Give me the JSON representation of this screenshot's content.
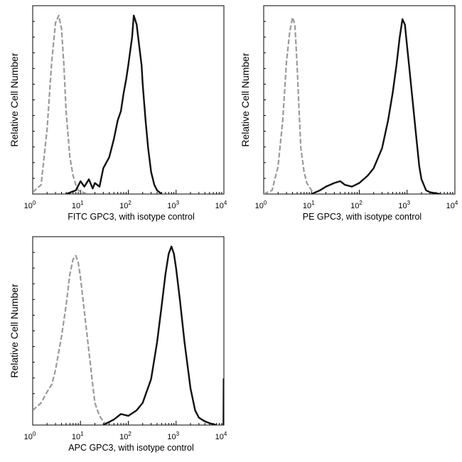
{
  "chart_data": [
    {
      "type": "line",
      "xlabel": "FITC GPC3, with isotype control",
      "ylabel": "Relative Cell Number",
      "x_scale": "log",
      "xlim": [
        1,
        10000
      ],
      "x_ticks": [
        {
          "base": "10",
          "exp": "0"
        },
        {
          "base": "10",
          "exp": "1"
        },
        {
          "base": "10",
          "exp": "2"
        },
        {
          "base": "10",
          "exp": "3"
        },
        {
          "base": "10",
          "exp": "4"
        }
      ],
      "y_ticks_labeled": false,
      "series": [
        {
          "role": "isotype",
          "color": "#9a9a9a",
          "style": "dashed",
          "x": [
            1.0,
            1.5,
            2.0,
            2.5,
            3.0,
            3.5,
            4.0,
            4.5,
            5.0,
            6.0,
            7.0,
            8.0,
            9.0,
            11.0,
            14.0
          ],
          "y": [
            1,
            5,
            35,
            72,
            93,
            97,
            90,
            70,
            45,
            20,
            10,
            5,
            2,
            1,
            0
          ]
        },
        {
          "role": "GPC3",
          "color": "#111111",
          "style": "solid",
          "x": [
            5,
            8,
            10,
            12,
            15,
            18,
            20,
            25,
            30,
            40,
            50,
            60,
            70,
            80,
            90,
            100,
            110,
            120,
            130,
            150,
            170,
            190,
            200,
            230,
            260,
            300,
            350,
            400,
            500
          ],
          "y": [
            0,
            2,
            7,
            4,
            8,
            3,
            6,
            4,
            14,
            20,
            30,
            40,
            45,
            55,
            62,
            70,
            78,
            85,
            97,
            92,
            80,
            70,
            60,
            40,
            25,
            12,
            5,
            2,
            0
          ]
        }
      ]
    },
    {
      "type": "line",
      "xlabel": "PE GPC3, with isotype control",
      "ylabel": "Relative Cell Number",
      "x_scale": "log",
      "xlim": [
        1,
        10000
      ],
      "x_ticks": [
        {
          "base": "10",
          "exp": "0"
        },
        {
          "base": "10",
          "exp": "1"
        },
        {
          "base": "10",
          "exp": "2"
        },
        {
          "base": "10",
          "exp": "3"
        },
        {
          "base": "10",
          "exp": "4"
        }
      ],
      "y_ticks_labeled": false,
      "series": [
        {
          "role": "isotype",
          "color": "#9a9a9a",
          "style": "dashed",
          "x": [
            1.0,
            1.5,
            2.0,
            2.5,
            3.0,
            3.5,
            4.0,
            4.5,
            5.0,
            5.5,
            6.0,
            7.0,
            8.0,
            10.0,
            12.0
          ],
          "y": [
            0,
            2,
            15,
            40,
            72,
            88,
            96,
            92,
            70,
            45,
            25,
            12,
            6,
            2,
            0
          ]
        },
        {
          "role": "GPC3",
          "color": "#111111",
          "style": "solid",
          "x": [
            10,
            15,
            20,
            30,
            40,
            50,
            70,
            100,
            150,
            200,
            300,
            400,
            500,
            600,
            700,
            800,
            900,
            1000,
            1100,
            1200,
            1500,
            1800,
            2000,
            2500,
            3000,
            5000
          ],
          "y": [
            0,
            2,
            4,
            6,
            7,
            5,
            4,
            6,
            10,
            14,
            25,
            40,
            55,
            70,
            85,
            95,
            92,
            80,
            70,
            60,
            35,
            15,
            8,
            2,
            1,
            0
          ]
        }
      ]
    },
    {
      "type": "line",
      "xlabel": "APC GPC3, with isotype control",
      "ylabel": "Relative Cell Number",
      "x_scale": "log",
      "xlim": [
        1,
        10000
      ],
      "x_ticks": [
        {
          "base": "10",
          "exp": "0"
        },
        {
          "base": "10",
          "exp": "1"
        },
        {
          "base": "10",
          "exp": "2"
        },
        {
          "base": "10",
          "exp": "3"
        },
        {
          "base": "10",
          "exp": "4"
        }
      ],
      "y_ticks_labeled": false,
      "series": [
        {
          "role": "isotype",
          "color": "#9a9a9a",
          "style": "dashed",
          "x": [
            1.0,
            1.5,
            2.0,
            2.5,
            3.0,
            4.0,
            5.0,
            6.0,
            7.0,
            8.0,
            9.0,
            10.0,
            12.0,
            15.0,
            18.0,
            20.0,
            25.0,
            30.0,
            35.0
          ],
          "y": [
            8,
            12,
            18,
            22,
            30,
            48,
            65,
            82,
            90,
            92,
            88,
            80,
            62,
            40,
            22,
            12,
            5,
            2,
            0
          ]
        },
        {
          "role": "GPC3",
          "color": "#111111",
          "style": "solid",
          "x": [
            30,
            50,
            70,
            100,
            150,
            200,
            300,
            400,
            500,
            600,
            700,
            800,
            900,
            1000,
            1200,
            1500,
            2000,
            2500,
            3000,
            4000,
            5000,
            7000
          ],
          "y": [
            0,
            3,
            6,
            5,
            8,
            12,
            25,
            45,
            65,
            82,
            93,
            97,
            93,
            85,
            68,
            45,
            20,
            8,
            4,
            2,
            1,
            0
          ]
        },
        {
          "role": "edge",
          "color": "#111111",
          "style": "solid",
          "x": [
            9800,
            9900,
            10000
          ],
          "y": [
            0,
            25,
            25
          ]
        }
      ]
    }
  ]
}
